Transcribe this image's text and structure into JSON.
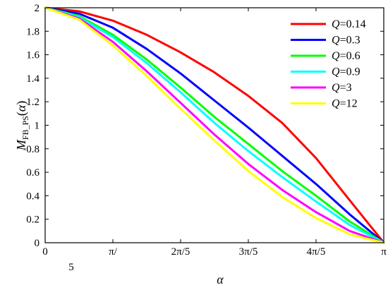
{
  "chart_data": {
    "type": "line",
    "title": "",
    "xlabel": "α",
    "ylabel": {
      "main": "M",
      "subscript": "FB_PS",
      "arg_open": "(",
      "arg": "α",
      "arg_close": ")"
    },
    "xlim": [
      0,
      3.14159
    ],
    "ylim": [
      0,
      2
    ],
    "grid": false,
    "legend_position": "top-right",
    "x_ticks": [
      {
        "value": 0,
        "label": "0"
      },
      {
        "value": 0.62832,
        "label": "π/",
        "label2": "5"
      },
      {
        "value": 1.25664,
        "label": "2π/5"
      },
      {
        "value": 1.88496,
        "label": "3π/5"
      },
      {
        "value": 2.51327,
        "label": "4π/5"
      },
      {
        "value": 3.14159,
        "label": "π"
      }
    ],
    "y_ticks": [
      {
        "value": 0,
        "label": "0"
      },
      {
        "value": 0.2,
        "label": "0.2"
      },
      {
        "value": 0.4,
        "label": "0.4"
      },
      {
        "value": 0.6,
        "label": "0.6"
      },
      {
        "value": 0.8,
        "label": "0.8"
      },
      {
        "value": 1,
        "label": "1"
      },
      {
        "value": 1.2,
        "label": "1.2"
      },
      {
        "value": 1.4,
        "label": "1.4"
      },
      {
        "value": 1.6,
        "label": "1.6"
      },
      {
        "value": 1.8,
        "label": "1.8"
      },
      {
        "value": 2,
        "label": "2"
      }
    ],
    "x": [
      0,
      0.314,
      0.628,
      0.942,
      1.257,
      1.571,
      1.885,
      2.199,
      2.513,
      2.827,
      3.142
    ],
    "series": [
      {
        "name": "Q=0.14",
        "q_symbol": "Q",
        "q_value": "=0.14",
        "color": "#ff0000",
        "values": [
          2.0,
          1.97,
          1.89,
          1.77,
          1.62,
          1.45,
          1.25,
          1.02,
          0.72,
          0.36,
          0.0
        ]
      },
      {
        "name": "Q=0.3",
        "q_symbol": "Q",
        "q_value": "=0.3",
        "color": "#0000ff",
        "values": [
          2.0,
          1.95,
          1.83,
          1.65,
          1.44,
          1.21,
          0.98,
          0.74,
          0.5,
          0.24,
          0.0
        ]
      },
      {
        "name": "Q=0.6",
        "q_symbol": "Q",
        "q_value": "=0.6",
        "color": "#00ff00",
        "values": [
          2.0,
          1.93,
          1.77,
          1.56,
          1.32,
          1.07,
          0.84,
          0.61,
          0.4,
          0.18,
          0.0
        ]
      },
      {
        "name": "Q=0.9",
        "q_symbol": "Q",
        "q_value": "=0.9",
        "color": "#00ffff",
        "values": [
          2.0,
          1.92,
          1.75,
          1.53,
          1.28,
          1.02,
          0.78,
          0.56,
          0.35,
          0.15,
          0.0
        ]
      },
      {
        "name": "Q=3",
        "q_symbol": "Q",
        "q_value": "=3",
        "color": "#ff00ff",
        "values": [
          2.0,
          1.91,
          1.71,
          1.46,
          1.19,
          0.92,
          0.67,
          0.45,
          0.26,
          0.1,
          0.0
        ]
      },
      {
        "name": "Q=12",
        "q_symbol": "Q",
        "q_value": "=12",
        "color": "#ffff00",
        "values": [
          2.0,
          1.9,
          1.68,
          1.42,
          1.14,
          0.87,
          0.61,
          0.39,
          0.21,
          0.07,
          0.0
        ]
      }
    ]
  }
}
